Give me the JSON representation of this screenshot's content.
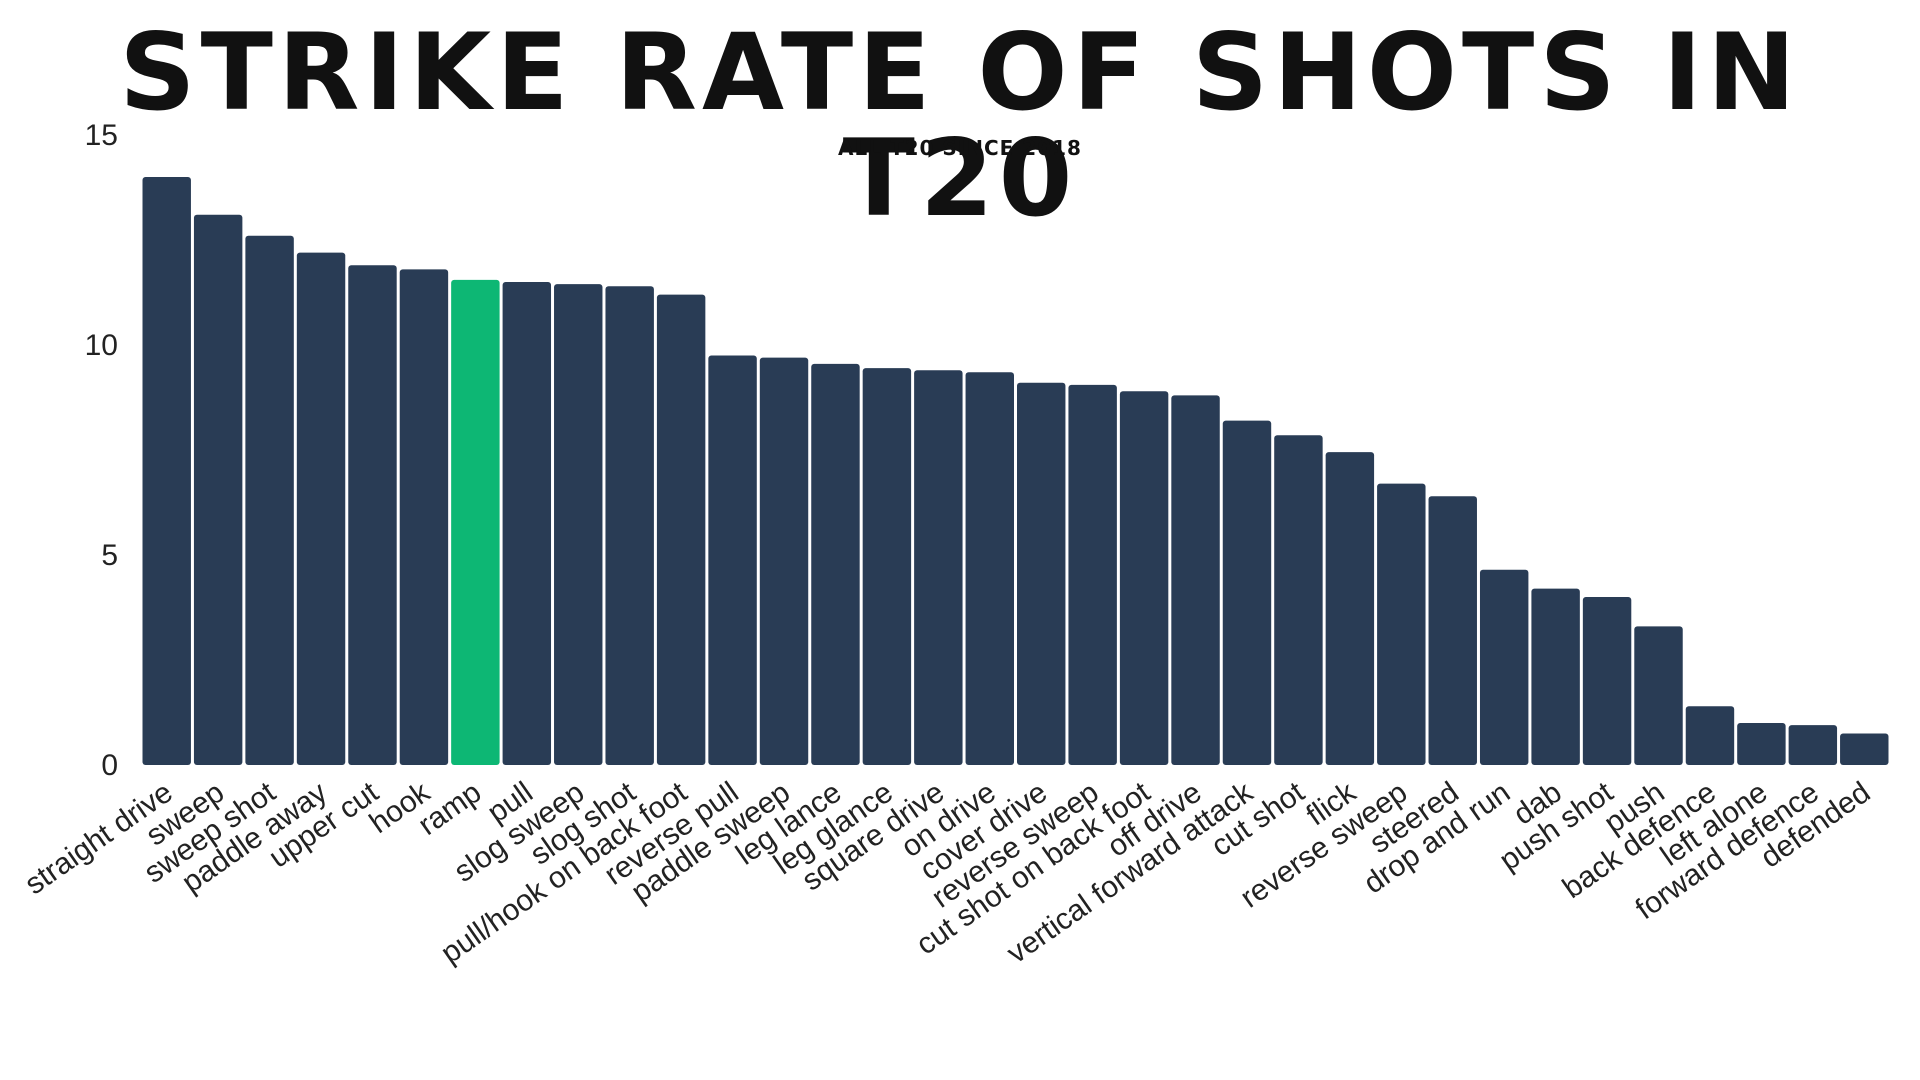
{
  "chart_data": {
    "type": "bar",
    "title": "Strike Rate of Shots in T20",
    "subtitle": "All T20 since 2018",
    "xlabel": "",
    "ylabel": "",
    "ylim": [
      0,
      15
    ],
    "yticks": [
      0,
      5,
      10,
      15
    ],
    "grid": false,
    "colors": {
      "default": "#293c55",
      "highlight": "#0db774"
    },
    "highlight": "ramp",
    "categories": [
      "straight drive",
      "sweep",
      "sweep shot",
      "paddle away",
      "upper cut",
      "hook",
      "ramp",
      "pull",
      "slog sweep",
      "slog shot",
      "pull/hook on back foot",
      "reverse pull",
      "paddle sweep",
      "leg lance",
      "leg glance",
      "square drive",
      "on drive",
      "cover drive",
      "reverse sweep",
      "cut shot on back foot",
      "off drive",
      "vertical forward attack",
      "cut shot",
      "flick",
      "reverse sweep",
      "steered",
      "drop and run",
      "dab",
      "push shot",
      "push",
      "back defence",
      "left alone",
      "forward defence",
      "defended"
    ],
    "values": [
      14.0,
      13.1,
      12.6,
      12.2,
      11.9,
      11.8,
      11.55,
      11.5,
      11.45,
      11.4,
      11.2,
      9.75,
      9.7,
      9.55,
      9.45,
      9.4,
      9.35,
      9.1,
      9.05,
      8.9,
      8.8,
      8.2,
      7.85,
      7.45,
      6.7,
      6.4,
      4.65,
      4.2,
      4.0,
      3.3,
      1.4,
      1.0,
      0.95,
      0.75
    ]
  }
}
